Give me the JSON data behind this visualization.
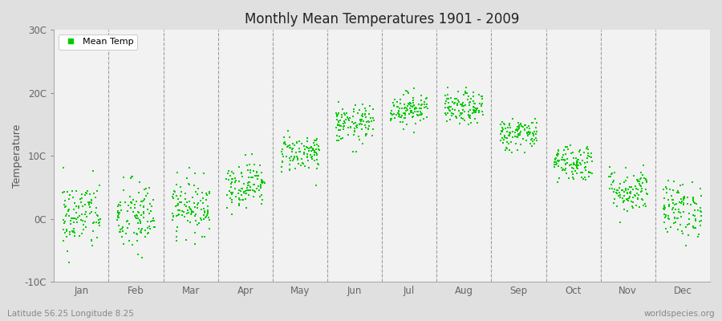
{
  "title": "Monthly Mean Temperatures 1901 - 2009",
  "ylabel": "Temperature",
  "xlabel_bottom_left": "Latitude 56.25 Longitude 8.25",
  "xlabel_bottom_right": "worldspecies.org",
  "ylim": [
    -10,
    30
  ],
  "yticks": [
    -10,
    0,
    10,
    20,
    30
  ],
  "ytick_labels": [
    "-10C",
    "0C",
    "10C",
    "20C",
    "30C"
  ],
  "months": [
    "Jan",
    "Feb",
    "Mar",
    "Apr",
    "May",
    "Jun",
    "Jul",
    "Aug",
    "Sep",
    "Oct",
    "Nov",
    "Dec"
  ],
  "dot_color": "#00cc00",
  "bg_color": "#e0e0e0",
  "plot_bg_color": "#f2f2f2",
  "legend_label": "Mean Temp",
  "n_years": 109,
  "monthly_means": [
    0.5,
    0.2,
    2.0,
    5.5,
    10.5,
    15.0,
    17.5,
    17.5,
    13.5,
    9.0,
    4.5,
    1.5
  ],
  "monthly_stds": [
    2.8,
    3.0,
    2.2,
    1.8,
    1.5,
    1.5,
    1.3,
    1.3,
    1.3,
    1.5,
    1.8,
    2.2
  ]
}
